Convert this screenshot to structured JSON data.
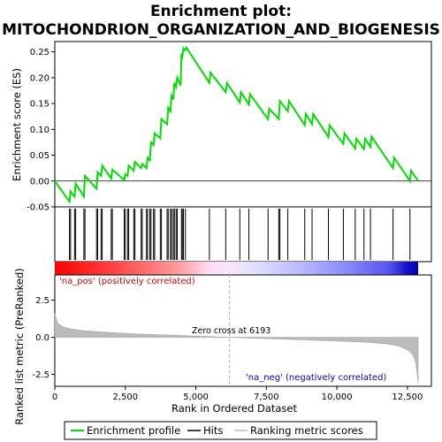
{
  "chart_data": {
    "type": "line",
    "title_line1": "Enrichment plot:",
    "title_line2": "MITOCHONDRION_ORGANIZATION_AND_BIOGENESIS",
    "es_panel": {
      "ylabel": "Enrichment score (ES)",
      "ylim": [
        -0.05,
        0.27
      ],
      "yticks": [
        -0.05,
        0.0,
        0.05,
        0.1,
        0.15,
        0.2,
        0.25
      ],
      "ytick_labels": [
        "-0.05",
        "0.00",
        "0.05",
        "0.10",
        "0.15",
        "0.20",
        "0.25"
      ],
      "series": [
        {
          "name": "Enrichment profile",
          "color": "#00dd00",
          "x": [
            0,
            520,
            560,
            700,
            740,
            1030,
            1070,
            1480,
            1520,
            1640,
            1680,
            2000,
            2040,
            2460,
            2500,
            2580,
            2620,
            2800,
            2840,
            3060,
            3100,
            3250,
            3290,
            3370,
            3410,
            3500,
            3540,
            3740,
            3780,
            3980,
            4020,
            4100,
            4140,
            4200,
            4240,
            4300,
            4340,
            4460,
            4490,
            4520,
            4560,
            4630,
            4670,
            5480,
            5520,
            6060,
            6100,
            6560,
            6600,
            6880,
            6920,
            7560,
            7600,
            7940,
            7980,
            8260,
            8300,
            8860,
            8900,
            9120,
            9160,
            9700,
            9740,
            10230,
            10270,
            10650,
            10690,
            10960,
            11000,
            11190,
            11230,
            11990,
            12030,
            12590,
            12630,
            12880
          ],
          "y": [
            0.0,
            -0.04,
            -0.02,
            -0.03,
            -0.005,
            -0.03,
            0.01,
            -0.015,
            0.017,
            0.01,
            0.03,
            0.005,
            0.022,
            0.002,
            0.013,
            0.01,
            0.03,
            0.02,
            0.037,
            0.025,
            0.033,
            0.025,
            0.045,
            0.04,
            0.075,
            0.07,
            0.092,
            0.083,
            0.12,
            0.11,
            0.142,
            0.135,
            0.165,
            0.158,
            0.19,
            0.182,
            0.2,
            0.185,
            0.243,
            0.24,
            0.257,
            0.253,
            0.258,
            0.19,
            0.21,
            0.172,
            0.19,
            0.152,
            0.172,
            0.148,
            0.168,
            0.12,
            0.14,
            0.12,
            0.155,
            0.135,
            0.155,
            0.108,
            0.13,
            0.11,
            0.13,
            0.085,
            0.108,
            0.072,
            0.092,
            0.063,
            0.082,
            0.062,
            0.082,
            0.066,
            0.086,
            0.025,
            0.045,
            0.0,
            0.02,
            0.0
          ]
        }
      ],
      "hits": [
        520,
        560,
        700,
        740,
        1030,
        1070,
        1480,
        1520,
        1640,
        1680,
        2000,
        2040,
        2460,
        2500,
        2580,
        2620,
        2800,
        2840,
        3060,
        3100,
        3250,
        3290,
        3370,
        3410,
        3500,
        3540,
        3740,
        3780,
        3980,
        4020,
        4100,
        4140,
        4200,
        4240,
        4300,
        4340,
        4490,
        4520,
        4560,
        4630,
        5480,
        6060,
        6560,
        6880,
        7560,
        7940,
        7980,
        8260,
        8860,
        9120,
        9700,
        10230,
        10650,
        10960,
        11190,
        11990,
        12590
      ]
    },
    "ranked_panel": {
      "ylabel": "Ranked list metric (PreRanked)",
      "xlabel": "Rank in Ordered Dataset",
      "ylim": [
        -3.3,
        4.2
      ],
      "yticks": [
        -2.5,
        0.0,
        2.5
      ],
      "ytick_labels": [
        "-2.5",
        "0.0",
        "2.5"
      ],
      "xlim": [
        0,
        12880
      ],
      "xticks": [
        0,
        2500,
        5000,
        7500,
        10000,
        12500
      ],
      "xtick_labels": [
        "0",
        "2,500",
        "5,000",
        "7,500",
        "10,000",
        "12,500"
      ],
      "metric_x": [
        0,
        100,
        300,
        600,
        1000,
        2000,
        3000,
        4000,
        5000,
        6193,
        7000,
        8000,
        9000,
        10000,
        11000,
        11800,
        12200,
        12500,
        12700,
        12780,
        12830,
        12860,
        12880
      ],
      "metric_y": [
        1.6,
        0.95,
        0.7,
        0.55,
        0.45,
        0.32,
        0.22,
        0.15,
        0.08,
        0.0,
        -0.06,
        -0.12,
        -0.18,
        -0.25,
        -0.33,
        -0.45,
        -0.6,
        -0.85,
        -1.2,
        -1.6,
        -2.2,
        -2.8,
        -3.1
      ],
      "zero_cross_rank": 6193,
      "zero_cross_label": "Zero cross at 6193",
      "pos_label": "'na_pos' (positively correlated)",
      "neg_label": "'na_neg' (negatively correlated)"
    },
    "legend": {
      "items": [
        {
          "label": "Enrichment profile",
          "color": "#00dd00"
        },
        {
          "label": "Hits",
          "color": "#000000"
        },
        {
          "label": "Ranking metric scores",
          "color": "#bbbbbb"
        }
      ]
    }
  }
}
